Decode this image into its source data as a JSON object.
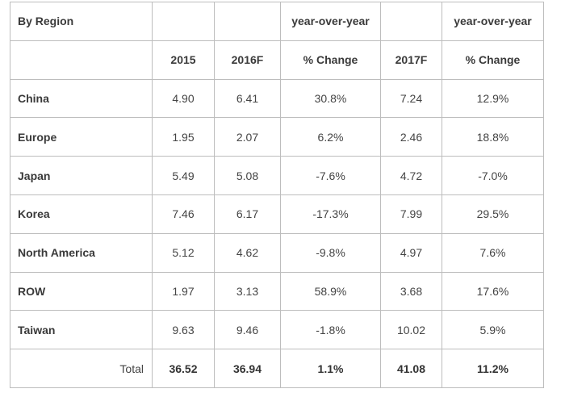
{
  "table": {
    "corner_label": "By Region",
    "group_headers": {
      "change_2016": "year-over-year",
      "change_2017": "year-over-year"
    },
    "columns": [
      "2015",
      "2016F",
      "% Change",
      "2017F",
      "% Change"
    ],
    "rows": [
      {
        "region": "China",
        "y2015": "4.90",
        "y2016f": "6.41",
        "chg2016": "30.8%",
        "y2017f": "7.24",
        "chg2017": "12.9%"
      },
      {
        "region": "Europe",
        "y2015": "1.95",
        "y2016f": "2.07",
        "chg2016": "6.2%",
        "y2017f": "2.46",
        "chg2017": "18.8%"
      },
      {
        "region": "Japan",
        "y2015": "5.49",
        "y2016f": "5.08",
        "chg2016": "-7.6%",
        "y2017f": "4.72",
        "chg2017": "-7.0%"
      },
      {
        "region": "Korea",
        "y2015": "7.46",
        "y2016f": "6.17",
        "chg2016": "-17.3%",
        "y2017f": "7.99",
        "chg2017": "29.5%"
      },
      {
        "region": "North America",
        "y2015": "5.12",
        "y2016f": "4.62",
        "chg2016": "-9.8%",
        "y2017f": "4.97",
        "chg2017": "7.6%"
      },
      {
        "region": "ROW",
        "y2015": "1.97",
        "y2016f": "3.13",
        "chg2016": "58.9%",
        "y2017f": "3.68",
        "chg2017": "17.6%"
      },
      {
        "region": "Taiwan",
        "y2015": "9.63",
        "y2016f": "9.46",
        "chg2016": "-1.8%",
        "y2017f": "10.02",
        "chg2017": "5.9%"
      }
    ],
    "total": {
      "label": "Total",
      "y2015": "36.52",
      "y2016f": "36.94",
      "chg2016": "1.1%",
      "y2017f": "41.08",
      "chg2017": "11.2%"
    }
  }
}
